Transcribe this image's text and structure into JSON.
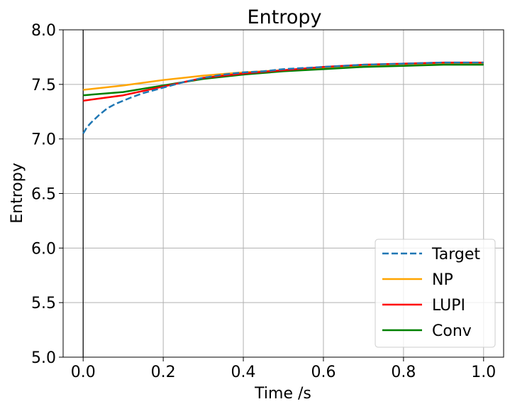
{
  "chart_data": {
    "type": "line",
    "title": "Entropy",
    "xlabel": "Time /s",
    "ylabel": "Entropy",
    "xlim": [
      -0.05,
      1.05
    ],
    "ylim": [
      5.0,
      8.0
    ],
    "x_ticks": [
      0.0,
      0.2,
      0.4,
      0.6,
      0.8,
      1.0
    ],
    "x_tick_labels": [
      "0.0",
      "0.2",
      "0.4",
      "0.6",
      "0.8",
      "1.0"
    ],
    "y_ticks": [
      5.0,
      5.5,
      6.0,
      6.5,
      7.0,
      7.5,
      8.0
    ],
    "y_tick_labels": [
      "5.0",
      "5.5",
      "6.0",
      "6.5",
      "7.0",
      "7.5",
      "8.0"
    ],
    "grid": true,
    "legend_position": "lower-right",
    "vertical_line_x": 0.0,
    "series": [
      {
        "name": "Target",
        "color": "#1f77b4",
        "dashed": true,
        "x": [
          0.0,
          0.01,
          0.02,
          0.04,
          0.06,
          0.08,
          0.1,
          0.12,
          0.15,
          0.2,
          0.25,
          0.3,
          0.35,
          0.4,
          0.45,
          0.5,
          0.6,
          0.7,
          0.8,
          0.9,
          1.0
        ],
        "y": [
          7.05,
          7.11,
          7.15,
          7.22,
          7.28,
          7.32,
          7.35,
          7.38,
          7.42,
          7.47,
          7.52,
          7.56,
          7.59,
          7.61,
          7.62,
          7.64,
          7.66,
          7.68,
          7.69,
          7.7,
          7.7
        ]
      },
      {
        "name": "NP",
        "color": "#ffa500",
        "dashed": false,
        "x": [
          0.0,
          0.1,
          0.2,
          0.3,
          0.4,
          0.5,
          0.6,
          0.7,
          0.8,
          0.9,
          1.0
        ],
        "y": [
          7.45,
          7.49,
          7.54,
          7.58,
          7.61,
          7.63,
          7.65,
          7.67,
          7.68,
          7.69,
          7.69
        ]
      },
      {
        "name": "LUPI",
        "color": "#ff0000",
        "dashed": false,
        "x": [
          0.0,
          0.1,
          0.2,
          0.3,
          0.4,
          0.5,
          0.6,
          0.7,
          0.8,
          0.9,
          1.0
        ],
        "y": [
          7.35,
          7.4,
          7.48,
          7.56,
          7.6,
          7.63,
          7.66,
          7.68,
          7.69,
          7.7,
          7.7
        ]
      },
      {
        "name": "Conv",
        "color": "#008000",
        "dashed": false,
        "x": [
          0.0,
          0.1,
          0.2,
          0.3,
          0.4,
          0.5,
          0.6,
          0.7,
          0.8,
          0.9,
          1.0
        ],
        "y": [
          7.4,
          7.43,
          7.49,
          7.55,
          7.59,
          7.62,
          7.64,
          7.66,
          7.67,
          7.68,
          7.68
        ]
      }
    ]
  }
}
